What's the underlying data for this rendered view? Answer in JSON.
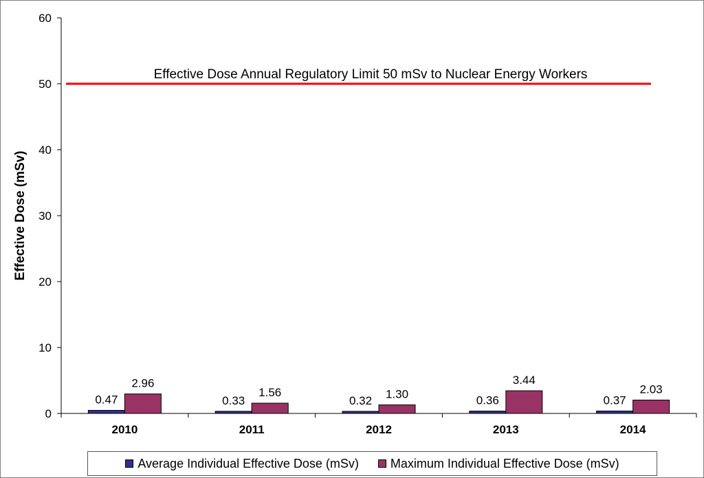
{
  "chart_data": {
    "type": "bar",
    "categories": [
      "2010",
      "2011",
      "2012",
      "2013",
      "2014"
    ],
    "series": [
      {
        "name": "Average Individual Effective Dose (mSv)",
        "values": [
          0.47,
          0.33,
          0.32,
          0.36,
          0.37
        ],
        "labels": [
          "0.47",
          "0.33",
          "0.32",
          "0.36",
          "0.37"
        ],
        "color": "#2e3192"
      },
      {
        "name": "Maximum Individual Effective Dose (mSv)",
        "values": [
          2.96,
          1.56,
          1.3,
          3.44,
          2.03
        ],
        "labels": [
          "2.96",
          "1.56",
          "1.30",
          "3.44",
          "2.03"
        ],
        "color": "#993366"
      }
    ],
    "ylabel": "Effective Dose (mSv)",
    "xlabel": "",
    "ylim": [
      0,
      60
    ],
    "yticks": [
      0,
      10,
      20,
      30,
      40,
      50,
      60
    ],
    "grid": false,
    "legend_position": "bottom",
    "reference_line": {
      "value": 50,
      "label": "Effective Dose Annual Regulatory Limit 50 mSv to Nuclear Energy Workers",
      "color": "#ff0000"
    }
  }
}
